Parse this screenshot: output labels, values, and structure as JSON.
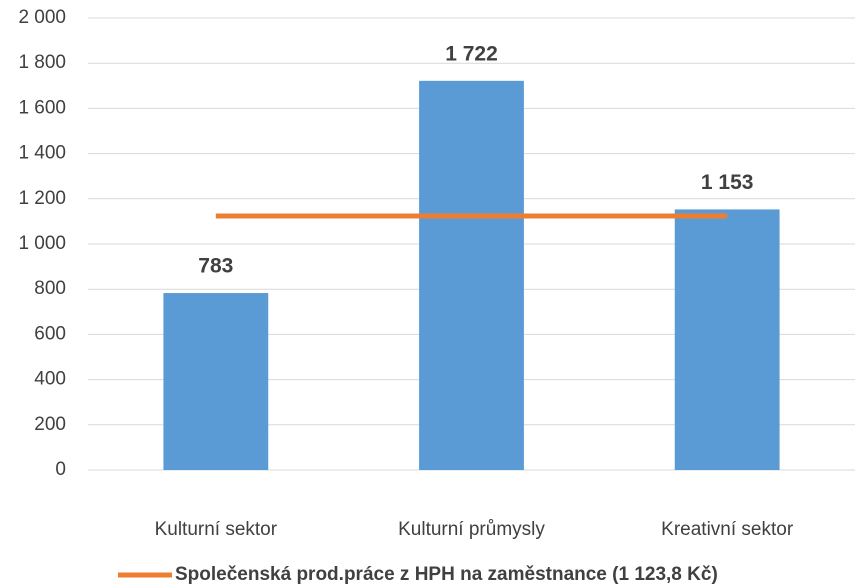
{
  "chart_data": {
    "type": "bar",
    "categories": [
      "Kulturní sektor",
      "Kulturní průmysly",
      "Kreativní sektor"
    ],
    "values": [
      783,
      1722,
      1153
    ],
    "value_labels": [
      "783",
      "1 722",
      "1 153"
    ],
    "color": "#5b9bd5",
    "series": [
      {
        "name": "Společenská prod.práce z HPH na zaměstnance (1 123,8 Kč)",
        "color": "#ed7d31",
        "values": [
          1123.8,
          1123.8,
          1123.8
        ]
      }
    ],
    "ylim": [
      0,
      2000
    ],
    "yticks": [
      0,
      200,
      400,
      600,
      800,
      {
        "value": 1000,
        "label": "1 000"
      },
      {
        "value": 1200,
        "label": "1 200"
      },
      {
        "value": 1400,
        "label": "1 400"
      },
      {
        "value": 1600,
        "label": "1 600"
      },
      {
        "value": 1800,
        "label": "1 800"
      },
      {
        "value": 2000,
        "label": "2 000"
      }
    ],
    "grid": true,
    "legend": "bottom"
  }
}
